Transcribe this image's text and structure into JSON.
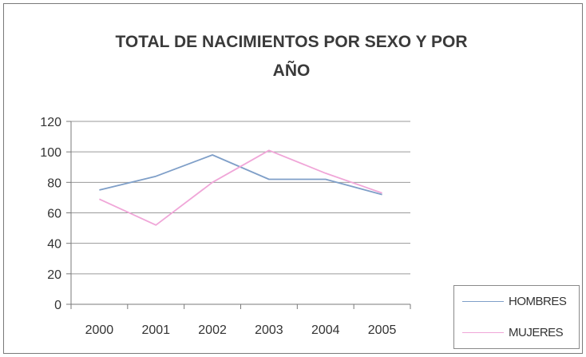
{
  "chart_data": {
    "type": "line",
    "title": "TOTAL DE NACIMIENTOS POR SEXO Y POR AÑO",
    "title_lines": [
      "TOTAL DE NACIMIENTOS POR SEXO Y POR",
      "AÑO"
    ],
    "x": [
      "2000",
      "2001",
      "2002",
      "2003",
      "2004",
      "2005"
    ],
    "y_ticks": [
      "0",
      "20",
      "40",
      "60",
      "80",
      "100",
      "120"
    ],
    "ylim": [
      0,
      120
    ],
    "grid": true,
    "legend_position": "bottom-right",
    "series": [
      {
        "name": "HOMBRES",
        "values": [
          75,
          84,
          98,
          82,
          82,
          72
        ],
        "color": "#7f9fc8"
      },
      {
        "name": "MUJERES",
        "values": [
          69,
          52,
          80,
          101,
          86,
          73
        ],
        "color": "#f0a6d8"
      }
    ]
  }
}
